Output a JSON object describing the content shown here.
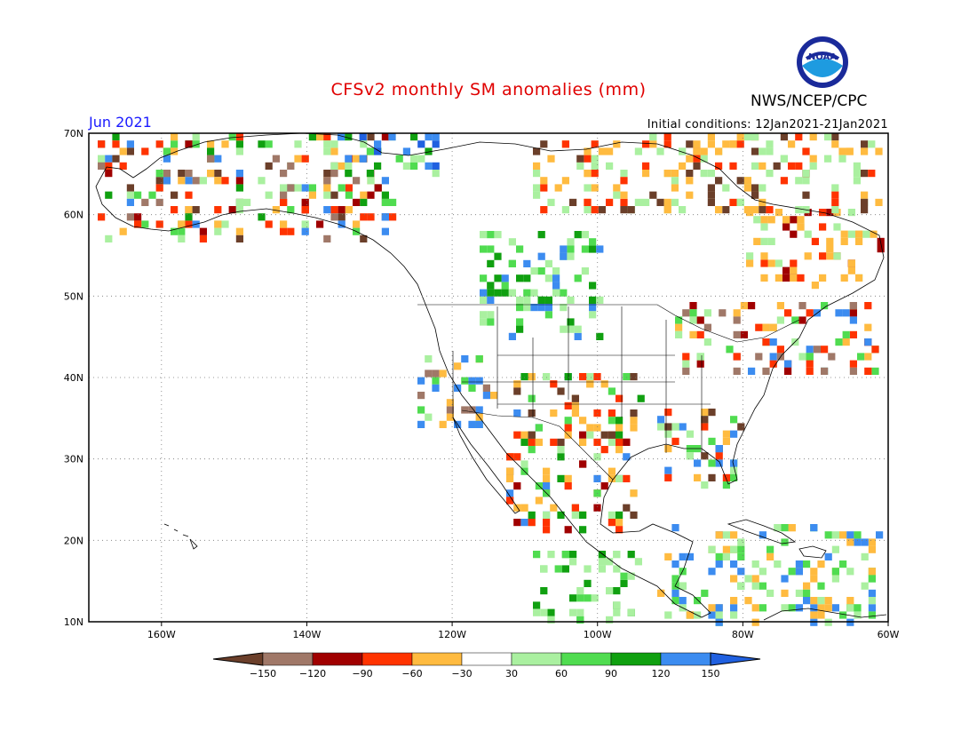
{
  "header": {
    "title": "CFSv2 monthly SM anomalies (mm)",
    "organization": "NWS/NCEP/CPC",
    "month": "Jun 2021",
    "initial_conditions": "Initial conditions: 12Jan2021-21Jan2021",
    "logo_text": "NOAA"
  },
  "map": {
    "lon_labels": [
      "160W",
      "140W",
      "120W",
      "100W",
      "80W",
      "60W"
    ],
    "lat_labels": [
      "70N",
      "60N",
      "50N",
      "40N",
      "30N",
      "20N",
      "10N"
    ],
    "lon_values": [
      -160,
      -140,
      -120,
      -100,
      -80,
      -60
    ],
    "lat_values": [
      70,
      60,
      50,
      40,
      30,
      20,
      10
    ],
    "lon_range": [
      -170,
      -60
    ],
    "lat_range": [
      10,
      70
    ]
  },
  "colorbar": {
    "labels": [
      "-150",
      "-120",
      "-90",
      "-60",
      "-30",
      "30",
      "60",
      "90",
      "120",
      "150"
    ],
    "colors": [
      "#6b3f2a",
      "#a07868",
      "#a00000",
      "#ff3300",
      "#ffbb40",
      "#ffffff",
      "#aaf0a0",
      "#50dc50",
      "#10a010",
      "#3c8cf0",
      "#2060e0"
    ]
  },
  "colors": {
    "title": "#e00000",
    "month": "#1a1aff"
  }
}
